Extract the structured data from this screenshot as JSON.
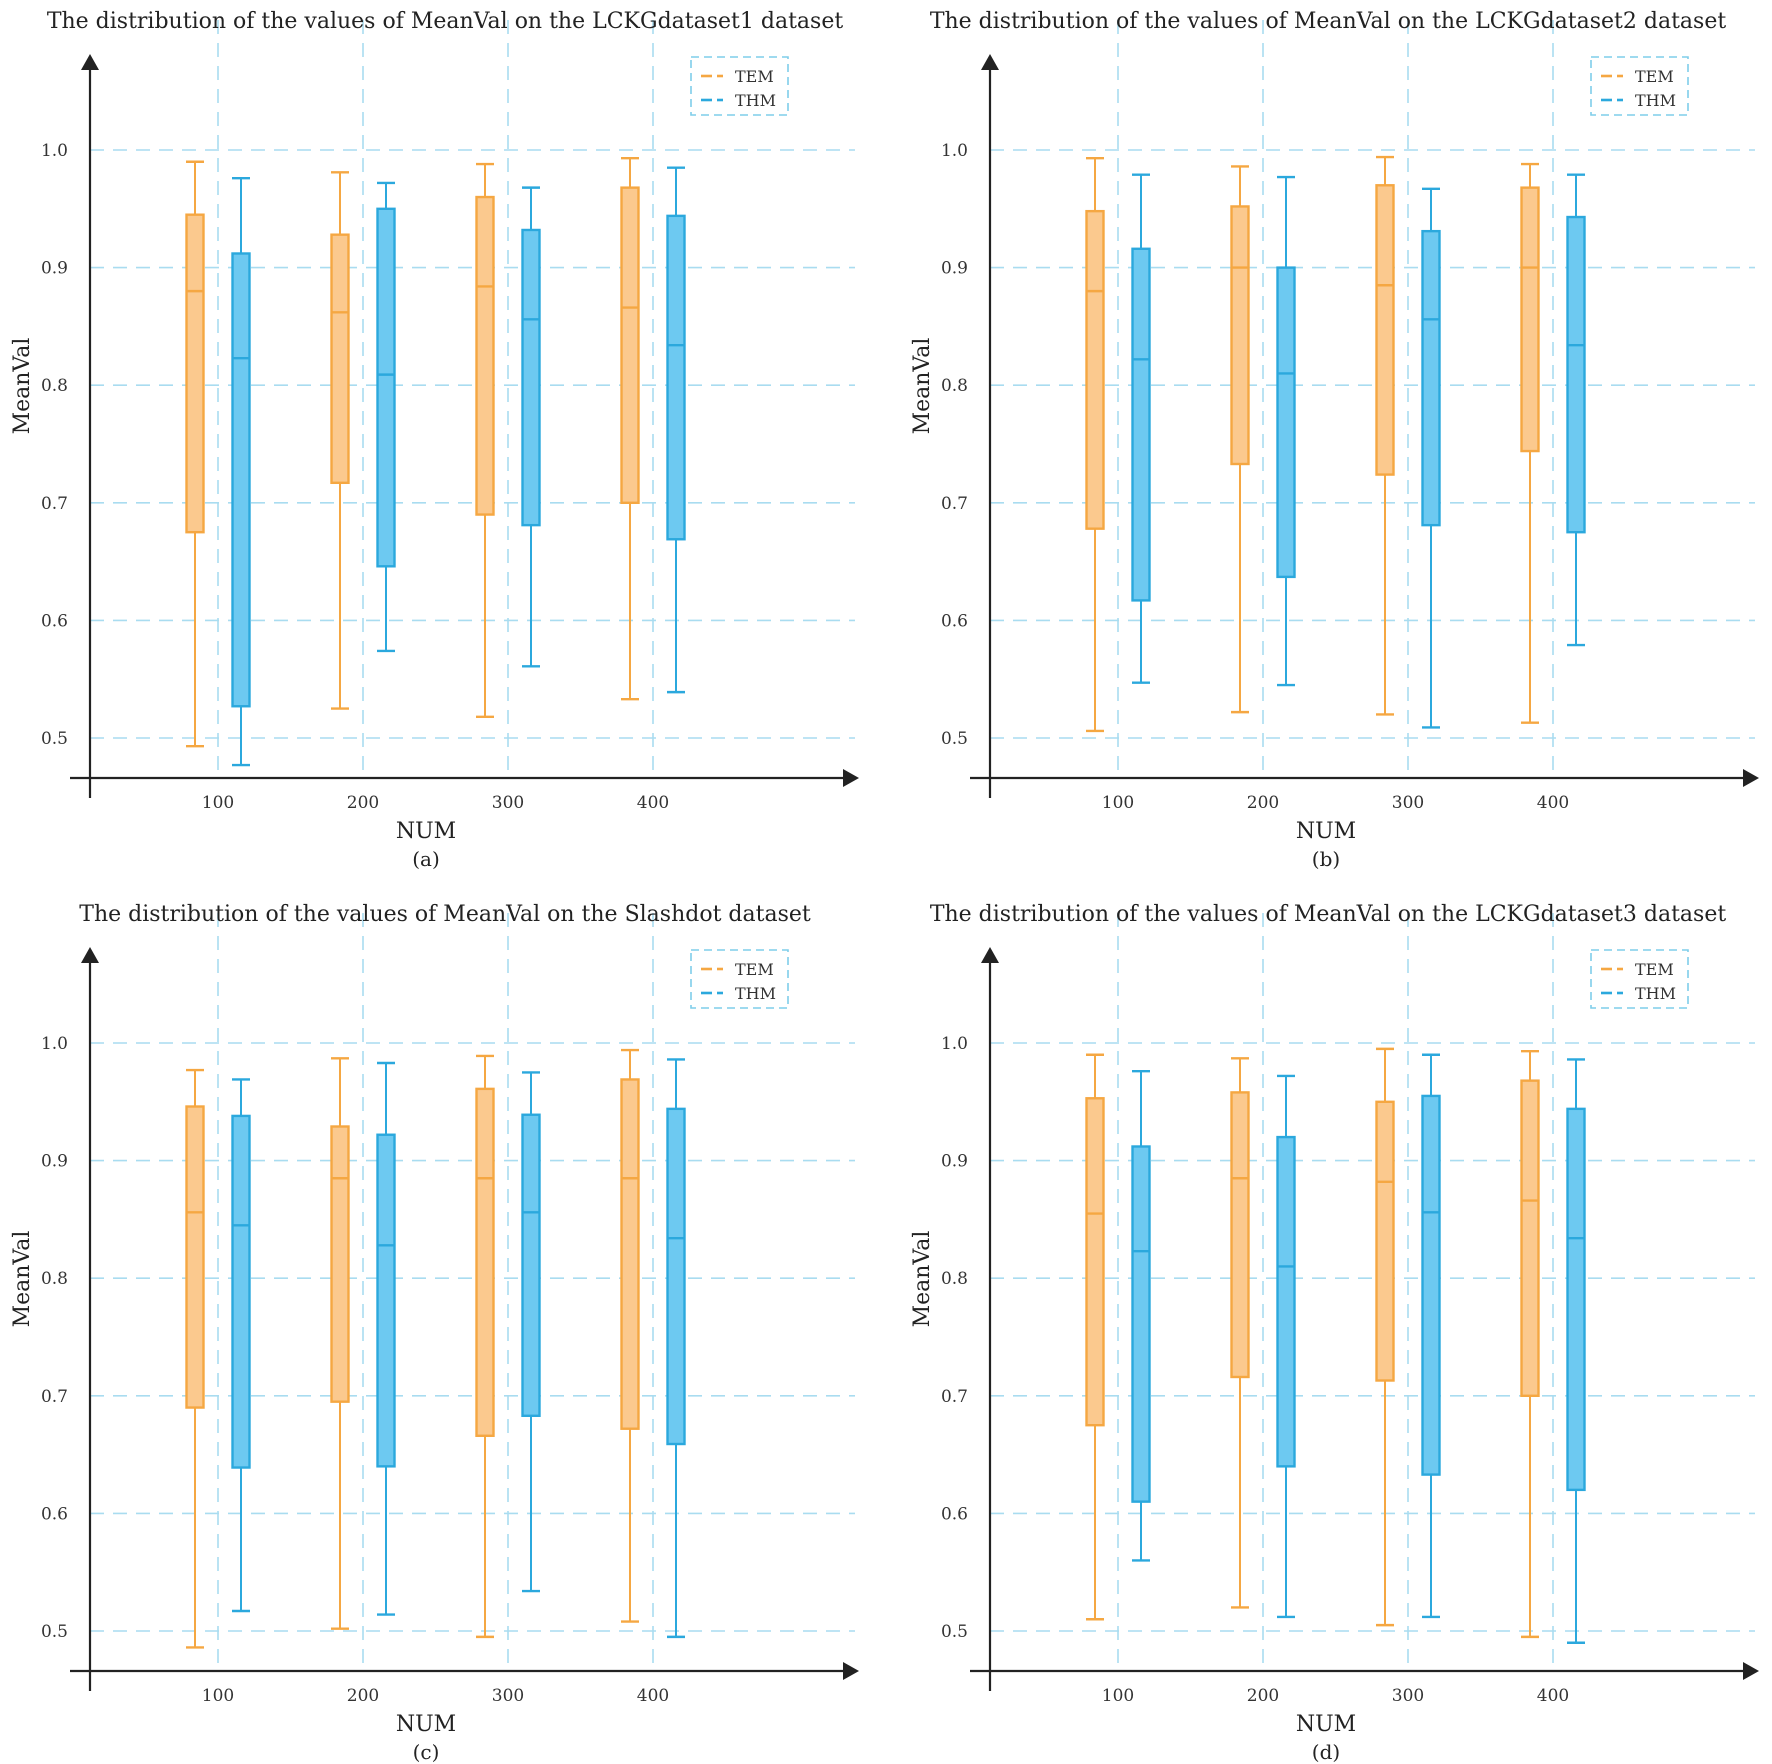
{
  "chart_data": [
    {
      "type": "boxplot",
      "panel_label": "(a)",
      "title": "The distribution of the values of MeanVal on the LCKGdataset1 dataset",
      "xlabel": "NUM",
      "ylabel": "MeanVal",
      "categories": [
        "100",
        "200",
        "300",
        "400"
      ],
      "yticks": [
        "0.5",
        "0.6",
        "0.7",
        "0.8",
        "0.9",
        "1.0"
      ],
      "ylim": [
        0.465,
        1.08
      ],
      "grid": true,
      "legend": {
        "position": "top-right",
        "entries": [
          "TEM",
          "THM"
        ]
      },
      "series": [
        {
          "name": "TEM",
          "color": "#F5A742",
          "fill": "#FBC98E",
          "boxes": [
            {
              "min": 0.493,
              "q1": 0.675,
              "median": 0.88,
              "q3": 0.945,
              "max": 0.99
            },
            {
              "min": 0.525,
              "q1": 0.717,
              "median": 0.862,
              "q3": 0.928,
              "max": 0.981
            },
            {
              "min": 0.518,
              "q1": 0.69,
              "median": 0.884,
              "q3": 0.96,
              "max": 0.988
            },
            {
              "min": 0.533,
              "q1": 0.7,
              "median": 0.866,
              "q3": 0.968,
              "max": 0.993
            }
          ]
        },
        {
          "name": "THM",
          "color": "#2BA8DD",
          "fill": "#6DC9F1",
          "boxes": [
            {
              "min": 0.477,
              "q1": 0.527,
              "median": 0.823,
              "q3": 0.912,
              "max": 0.976
            },
            {
              "min": 0.574,
              "q1": 0.646,
              "median": 0.809,
              "q3": 0.95,
              "max": 0.972
            },
            {
              "min": 0.561,
              "q1": 0.681,
              "median": 0.856,
              "q3": 0.932,
              "max": 0.968
            },
            {
              "min": 0.539,
              "q1": 0.669,
              "median": 0.834,
              "q3": 0.944,
              "max": 0.985
            }
          ]
        }
      ]
    },
    {
      "type": "boxplot",
      "panel_label": "(b)",
      "title": "The distribution of the values of MeanVal on the LCKGdataset2 dataset",
      "xlabel": "NUM",
      "ylabel": "MeanVal",
      "categories": [
        "100",
        "200",
        "300",
        "400"
      ],
      "yticks": [
        "0.5",
        "0.6",
        "0.7",
        "0.8",
        "0.9",
        "1.0"
      ],
      "ylim": [
        0.465,
        1.08
      ],
      "grid": true,
      "legend": {
        "position": "top-right",
        "entries": [
          "TEM",
          "THM"
        ]
      },
      "series": [
        {
          "name": "TEM",
          "color": "#F5A742",
          "fill": "#FBC98E",
          "boxes": [
            {
              "min": 0.506,
              "q1": 0.678,
              "median": 0.88,
              "q3": 0.948,
              "max": 0.993
            },
            {
              "min": 0.522,
              "q1": 0.733,
              "median": 0.9,
              "q3": 0.952,
              "max": 0.986
            },
            {
              "min": 0.52,
              "q1": 0.724,
              "median": 0.885,
              "q3": 0.97,
              "max": 0.994
            },
            {
              "min": 0.513,
              "q1": 0.744,
              "median": 0.9,
              "q3": 0.968,
              "max": 0.988
            }
          ]
        },
        {
          "name": "THM",
          "color": "#2BA8DD",
          "fill": "#6DC9F1",
          "boxes": [
            {
              "min": 0.547,
              "q1": 0.617,
              "median": 0.822,
              "q3": 0.916,
              "max": 0.979
            },
            {
              "min": 0.545,
              "q1": 0.637,
              "median": 0.81,
              "q3": 0.9,
              "max": 0.977
            },
            {
              "min": 0.509,
              "q1": 0.681,
              "median": 0.856,
              "q3": 0.931,
              "max": 0.967
            },
            {
              "min": 0.579,
              "q1": 0.675,
              "median": 0.834,
              "q3": 0.943,
              "max": 0.979
            }
          ]
        }
      ]
    },
    {
      "type": "boxplot",
      "panel_label": "(c)",
      "title": "The distribution of the values of MeanVal on the Slashdot dataset",
      "xlabel": "NUM",
      "ylabel": "MeanVal",
      "categories": [
        "100",
        "200",
        "300",
        "400"
      ],
      "yticks": [
        "0.5",
        "0.6",
        "0.7",
        "0.8",
        "0.9",
        "1.0"
      ],
      "ylim": [
        0.465,
        1.08
      ],
      "grid": true,
      "legend": {
        "position": "top-right",
        "entries": [
          "TEM",
          "THM"
        ]
      },
      "series": [
        {
          "name": "TEM",
          "color": "#F5A742",
          "fill": "#FBC98E",
          "boxes": [
            {
              "min": 0.486,
              "q1": 0.69,
              "median": 0.856,
              "q3": 0.946,
              "max": 0.977
            },
            {
              "min": 0.502,
              "q1": 0.695,
              "median": 0.885,
              "q3": 0.929,
              "max": 0.987
            },
            {
              "min": 0.495,
              "q1": 0.666,
              "median": 0.885,
              "q3": 0.961,
              "max": 0.989
            },
            {
              "min": 0.508,
              "q1": 0.672,
              "median": 0.885,
              "q3": 0.969,
              "max": 0.994
            }
          ]
        },
        {
          "name": "THM",
          "color": "#2BA8DD",
          "fill": "#6DC9F1",
          "boxes": [
            {
              "min": 0.517,
              "q1": 0.639,
              "median": 0.845,
              "q3": 0.938,
              "max": 0.969
            },
            {
              "min": 0.514,
              "q1": 0.64,
              "median": 0.828,
              "q3": 0.922,
              "max": 0.983
            },
            {
              "min": 0.534,
              "q1": 0.683,
              "median": 0.856,
              "q3": 0.939,
              "max": 0.975
            },
            {
              "min": 0.495,
              "q1": 0.659,
              "median": 0.834,
              "q3": 0.944,
              "max": 0.986
            }
          ]
        }
      ]
    },
    {
      "type": "boxplot",
      "panel_label": "(d)",
      "title": "The distribution of the values of MeanVal on the LCKGdataset3 dataset",
      "xlabel": "NUM",
      "ylabel": "MeanVal",
      "categories": [
        "100",
        "200",
        "300",
        "400"
      ],
      "yticks": [
        "0.5",
        "0.6",
        "0.7",
        "0.8",
        "0.9",
        "1.0"
      ],
      "ylim": [
        0.465,
        1.08
      ],
      "grid": true,
      "legend": {
        "position": "top-right",
        "entries": [
          "TEM",
          "THM"
        ]
      },
      "series": [
        {
          "name": "TEM",
          "color": "#F5A742",
          "fill": "#FBC98E",
          "boxes": [
            {
              "min": 0.51,
              "q1": 0.675,
              "median": 0.855,
              "q3": 0.953,
              "max": 0.99
            },
            {
              "min": 0.52,
              "q1": 0.716,
              "median": 0.885,
              "q3": 0.958,
              "max": 0.987
            },
            {
              "min": 0.505,
              "q1": 0.713,
              "median": 0.882,
              "q3": 0.95,
              "max": 0.995
            },
            {
              "min": 0.495,
              "q1": 0.7,
              "median": 0.866,
              "q3": 0.968,
              "max": 0.993
            }
          ]
        },
        {
          "name": "THM",
          "color": "#2BA8DD",
          "fill": "#6DC9F1",
          "boxes": [
            {
              "min": 0.56,
              "q1": 0.61,
              "median": 0.823,
              "q3": 0.912,
              "max": 0.976
            },
            {
              "min": 0.512,
              "q1": 0.64,
              "median": 0.81,
              "q3": 0.92,
              "max": 0.972
            },
            {
              "min": 0.512,
              "q1": 0.633,
              "median": 0.856,
              "q3": 0.955,
              "max": 0.99
            },
            {
              "min": 0.49,
              "q1": 0.62,
              "median": 0.834,
              "q3": 0.944,
              "max": 0.986
            }
          ]
        }
      ]
    }
  ],
  "style": {
    "grid_color": "#A9DCF0",
    "axis_color": "#222222"
  }
}
